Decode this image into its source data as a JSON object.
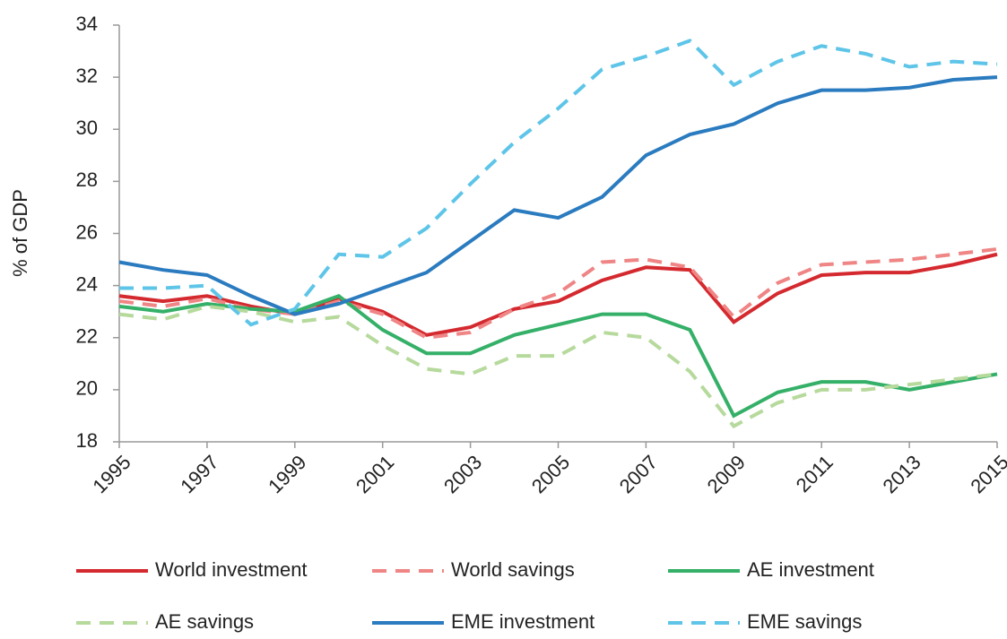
{
  "chart_data": {
    "type": "line",
    "y_label": "% of GDP",
    "x": [
      1995,
      1996,
      1997,
      1998,
      1999,
      2000,
      2001,
      2002,
      2003,
      2004,
      2005,
      2006,
      2007,
      2008,
      2009,
      2010,
      2011,
      2012,
      2013,
      2014,
      2015
    ],
    "xlim": [
      1995,
      2015
    ],
    "xticks": [
      1995,
      1997,
      1999,
      2001,
      2003,
      2005,
      2007,
      2009,
      2011,
      2013,
      2015
    ],
    "ylim": [
      18,
      34
    ],
    "yticks": [
      18,
      20,
      22,
      24,
      26,
      28,
      30,
      32,
      34
    ],
    "grid": false,
    "legend": "bottom",
    "series": [
      {
        "name": "World investment",
        "color": "#d42a2f",
        "style": "solid",
        "values": [
          23.6,
          23.4,
          23.6,
          23.2,
          22.9,
          23.5,
          23.0,
          22.1,
          22.4,
          23.1,
          23.4,
          24.2,
          24.7,
          24.6,
          22.6,
          23.7,
          24.4,
          24.5,
          24.5,
          24.8,
          25.2
        ]
      },
      {
        "name": "World savings",
        "color": "#ef8585",
        "style": "dashed",
        "values": [
          23.4,
          23.2,
          23.5,
          23.1,
          22.9,
          23.4,
          22.9,
          22.0,
          22.2,
          23.1,
          23.7,
          24.9,
          25.0,
          24.7,
          22.8,
          24.1,
          24.8,
          24.9,
          25.0,
          25.2,
          25.4
        ]
      },
      {
        "name": "AE investment",
        "color": "#35b068",
        "style": "solid",
        "values": [
          23.2,
          23.0,
          23.3,
          23.1,
          23.0,
          23.6,
          22.3,
          21.4,
          21.4,
          22.1,
          22.5,
          22.9,
          22.9,
          22.3,
          19.0,
          19.9,
          20.3,
          20.3,
          20.0,
          20.3,
          20.6
        ]
      },
      {
        "name": "AE savings",
        "color": "#b6d99c",
        "style": "dashed",
        "values": [
          22.9,
          22.7,
          23.2,
          23.0,
          22.6,
          22.8,
          21.7,
          20.8,
          20.6,
          21.3,
          21.3,
          22.2,
          22.0,
          20.7,
          18.6,
          19.5,
          20.0,
          20.0,
          20.2,
          20.4,
          20.6
        ]
      },
      {
        "name": "EME investment",
        "color": "#2a7bbf",
        "style": "solid",
        "values": [
          24.9,
          24.6,
          24.4,
          23.6,
          22.9,
          23.3,
          23.9,
          24.5,
          25.7,
          26.9,
          26.6,
          27.4,
          29.0,
          29.8,
          30.2,
          31.0,
          31.5,
          31.5,
          31.6,
          31.9,
          32.0
        ]
      },
      {
        "name": "EME savings",
        "color": "#5ec5e8",
        "style": "dashed",
        "values": [
          23.9,
          23.9,
          24.0,
          22.5,
          23.1,
          25.2,
          25.1,
          26.2,
          27.9,
          29.5,
          30.8,
          32.3,
          32.8,
          33.4,
          31.7,
          32.6,
          33.2,
          32.9,
          32.4,
          32.6,
          32.5
        ]
      }
    ]
  }
}
